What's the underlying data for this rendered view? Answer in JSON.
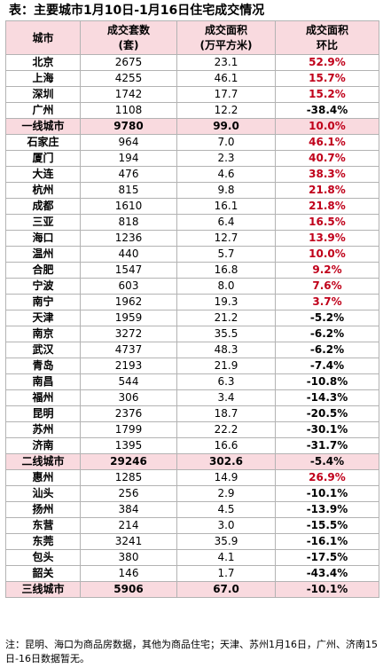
{
  "title": "表：主要城市1月10日-1月16日住宅成交情况",
  "headers": {
    "city": "城市",
    "units_1": "成交套数",
    "units_2": "(套)",
    "area_1": "成交面积",
    "area_2": "(万平方米)",
    "change_1": "成交面积",
    "change_2": "环比"
  },
  "rows": [
    {
      "city": "北京",
      "units": "2675",
      "area": "23.1",
      "change": "52.9%",
      "dir": "pos"
    },
    {
      "city": "上海",
      "units": "4255",
      "area": "46.1",
      "change": "15.7%",
      "dir": "pos"
    },
    {
      "city": "深圳",
      "units": "1742",
      "area": "17.7",
      "change": "15.2%",
      "dir": "pos"
    },
    {
      "city": "广州",
      "units": "1108",
      "area": "12.2",
      "change": "-38.4%",
      "dir": "neg"
    },
    {
      "city": "一线城市",
      "units": "9780",
      "area": "99.0",
      "change": "10.0%",
      "dir": "pos",
      "subtotal": true
    },
    {
      "city": "石家庄",
      "units": "964",
      "area": "7.0",
      "change": "46.1%",
      "dir": "pos"
    },
    {
      "city": "厦门",
      "units": "194",
      "area": "2.3",
      "change": "40.7%",
      "dir": "pos"
    },
    {
      "city": "大连",
      "units": "476",
      "area": "4.6",
      "change": "38.3%",
      "dir": "pos"
    },
    {
      "city": "杭州",
      "units": "815",
      "area": "9.8",
      "change": "21.8%",
      "dir": "pos"
    },
    {
      "city": "成都",
      "units": "1610",
      "area": "16.1",
      "change": "21.8%",
      "dir": "pos"
    },
    {
      "city": "三亚",
      "units": "818",
      "area": "6.4",
      "change": "16.5%",
      "dir": "pos"
    },
    {
      "city": "海口",
      "units": "1236",
      "area": "12.7",
      "change": "13.9%",
      "dir": "pos"
    },
    {
      "city": "温州",
      "units": "440",
      "area": "5.7",
      "change": "10.0%",
      "dir": "pos"
    },
    {
      "city": "合肥",
      "units": "1547",
      "area": "16.8",
      "change": "9.2%",
      "dir": "pos"
    },
    {
      "city": "宁波",
      "units": "603",
      "area": "8.0",
      "change": "7.6%",
      "dir": "pos"
    },
    {
      "city": "南宁",
      "units": "1962",
      "area": "19.3",
      "change": "3.7%",
      "dir": "pos"
    },
    {
      "city": "天津",
      "units": "1959",
      "area": "21.2",
      "change": "-5.2%",
      "dir": "neg"
    },
    {
      "city": "南京",
      "units": "3272",
      "area": "35.5",
      "change": "-6.2%",
      "dir": "neg"
    },
    {
      "city": "武汉",
      "units": "4737",
      "area": "48.3",
      "change": "-6.2%",
      "dir": "neg"
    },
    {
      "city": "青岛",
      "units": "2193",
      "area": "21.9",
      "change": "-7.4%",
      "dir": "neg"
    },
    {
      "city": "南昌",
      "units": "544",
      "area": "6.3",
      "change": "-10.8%",
      "dir": "neg"
    },
    {
      "city": "福州",
      "units": "306",
      "area": "3.4",
      "change": "-14.3%",
      "dir": "neg"
    },
    {
      "city": "昆明",
      "units": "2376",
      "area": "18.7",
      "change": "-20.5%",
      "dir": "neg"
    },
    {
      "city": "苏州",
      "units": "1799",
      "area": "22.2",
      "change": "-30.1%",
      "dir": "neg"
    },
    {
      "city": "济南",
      "units": "1395",
      "area": "16.6",
      "change": "-31.7%",
      "dir": "neg"
    },
    {
      "city": "二线城市",
      "units": "29246",
      "area": "302.6",
      "change": "-5.4%",
      "dir": "neg",
      "subtotal": true
    },
    {
      "city": "惠州",
      "units": "1285",
      "area": "14.9",
      "change": "26.9%",
      "dir": "pos"
    },
    {
      "city": "汕头",
      "units": "256",
      "area": "2.9",
      "change": "-10.1%",
      "dir": "neg"
    },
    {
      "city": "扬州",
      "units": "384",
      "area": "4.5",
      "change": "-13.9%",
      "dir": "neg"
    },
    {
      "city": "东营",
      "units": "214",
      "area": "3.0",
      "change": "-15.5%",
      "dir": "neg"
    },
    {
      "city": "东莞",
      "units": "3241",
      "area": "35.9",
      "change": "-16.1%",
      "dir": "neg"
    },
    {
      "city": "包头",
      "units": "380",
      "area": "4.1",
      "change": "-17.5%",
      "dir": "neg"
    },
    {
      "city": "韶关",
      "units": "146",
      "area": "1.7",
      "change": "-43.4%",
      "dir": "neg"
    },
    {
      "city": "三线城市",
      "units": "5906",
      "area": "67.0",
      "change": "-10.1%",
      "dir": "neg",
      "subtotal": true
    }
  ],
  "note": "注：昆明、海口为商品房数据，其他为商品住宅；天津、苏州1月16日，广州、济南15日-16日数据暂无。",
  "colors": {
    "positive": "#c0001a",
    "header_bg": "#f9dadf",
    "border": "#b3b3b3"
  }
}
